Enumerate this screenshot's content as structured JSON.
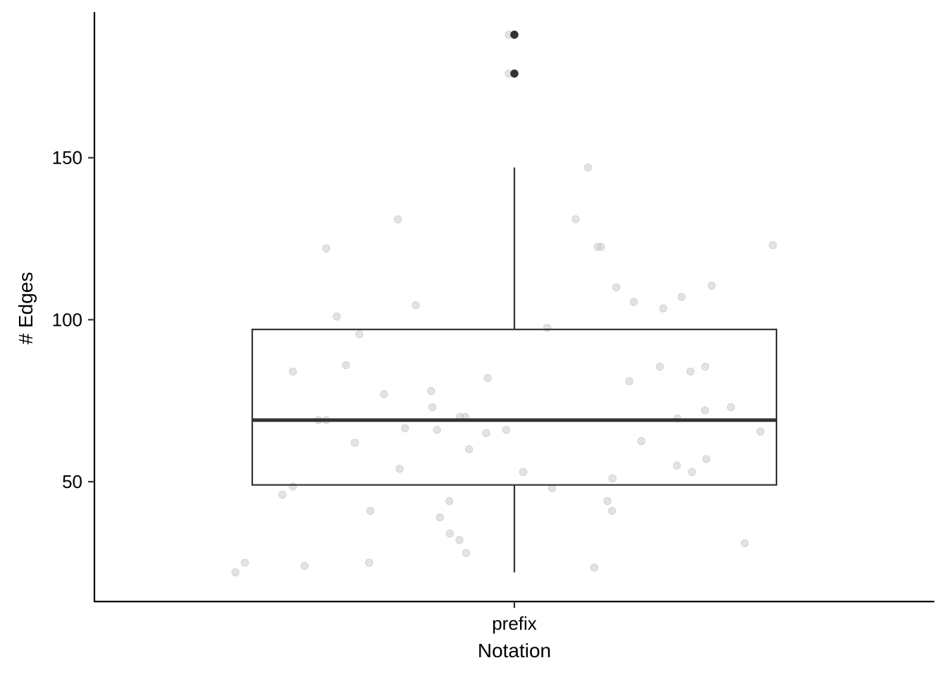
{
  "chart_data": {
    "type": "box",
    "xlabel": "Notation",
    "ylabel": "# Edges",
    "categories": [
      "prefix"
    ],
    "ylim": [
      13,
      195
    ],
    "yticks": [
      50,
      100,
      150
    ],
    "box": {
      "category": "prefix",
      "q1": 49,
      "median": 69,
      "q3": 97,
      "whisker_low": 22,
      "whisker_high": 147,
      "outliers": [
        176,
        188
      ]
    },
    "jitter_points": {
      "color": "#cccccc",
      "y": [
        188,
        176,
        147,
        131,
        131,
        123,
        122.5,
        122.5,
        122,
        110.5,
        110,
        107,
        105.5,
        104.5,
        103.5,
        101,
        97.5,
        95.5,
        86,
        85.5,
        85.5,
        84,
        84,
        82,
        81,
        78,
        77,
        73,
        73,
        72,
        70,
        70,
        69.5,
        69,
        69,
        66.5,
        66,
        66,
        65.5,
        65,
        62.5,
        62,
        60,
        57,
        55,
        54,
        53,
        53,
        51,
        48.5,
        48,
        46,
        44,
        44,
        41,
        41,
        39,
        34,
        32,
        31,
        28,
        25,
        25,
        24,
        23.5,
        22
      ]
    },
    "grid": false,
    "legend": "none"
  }
}
